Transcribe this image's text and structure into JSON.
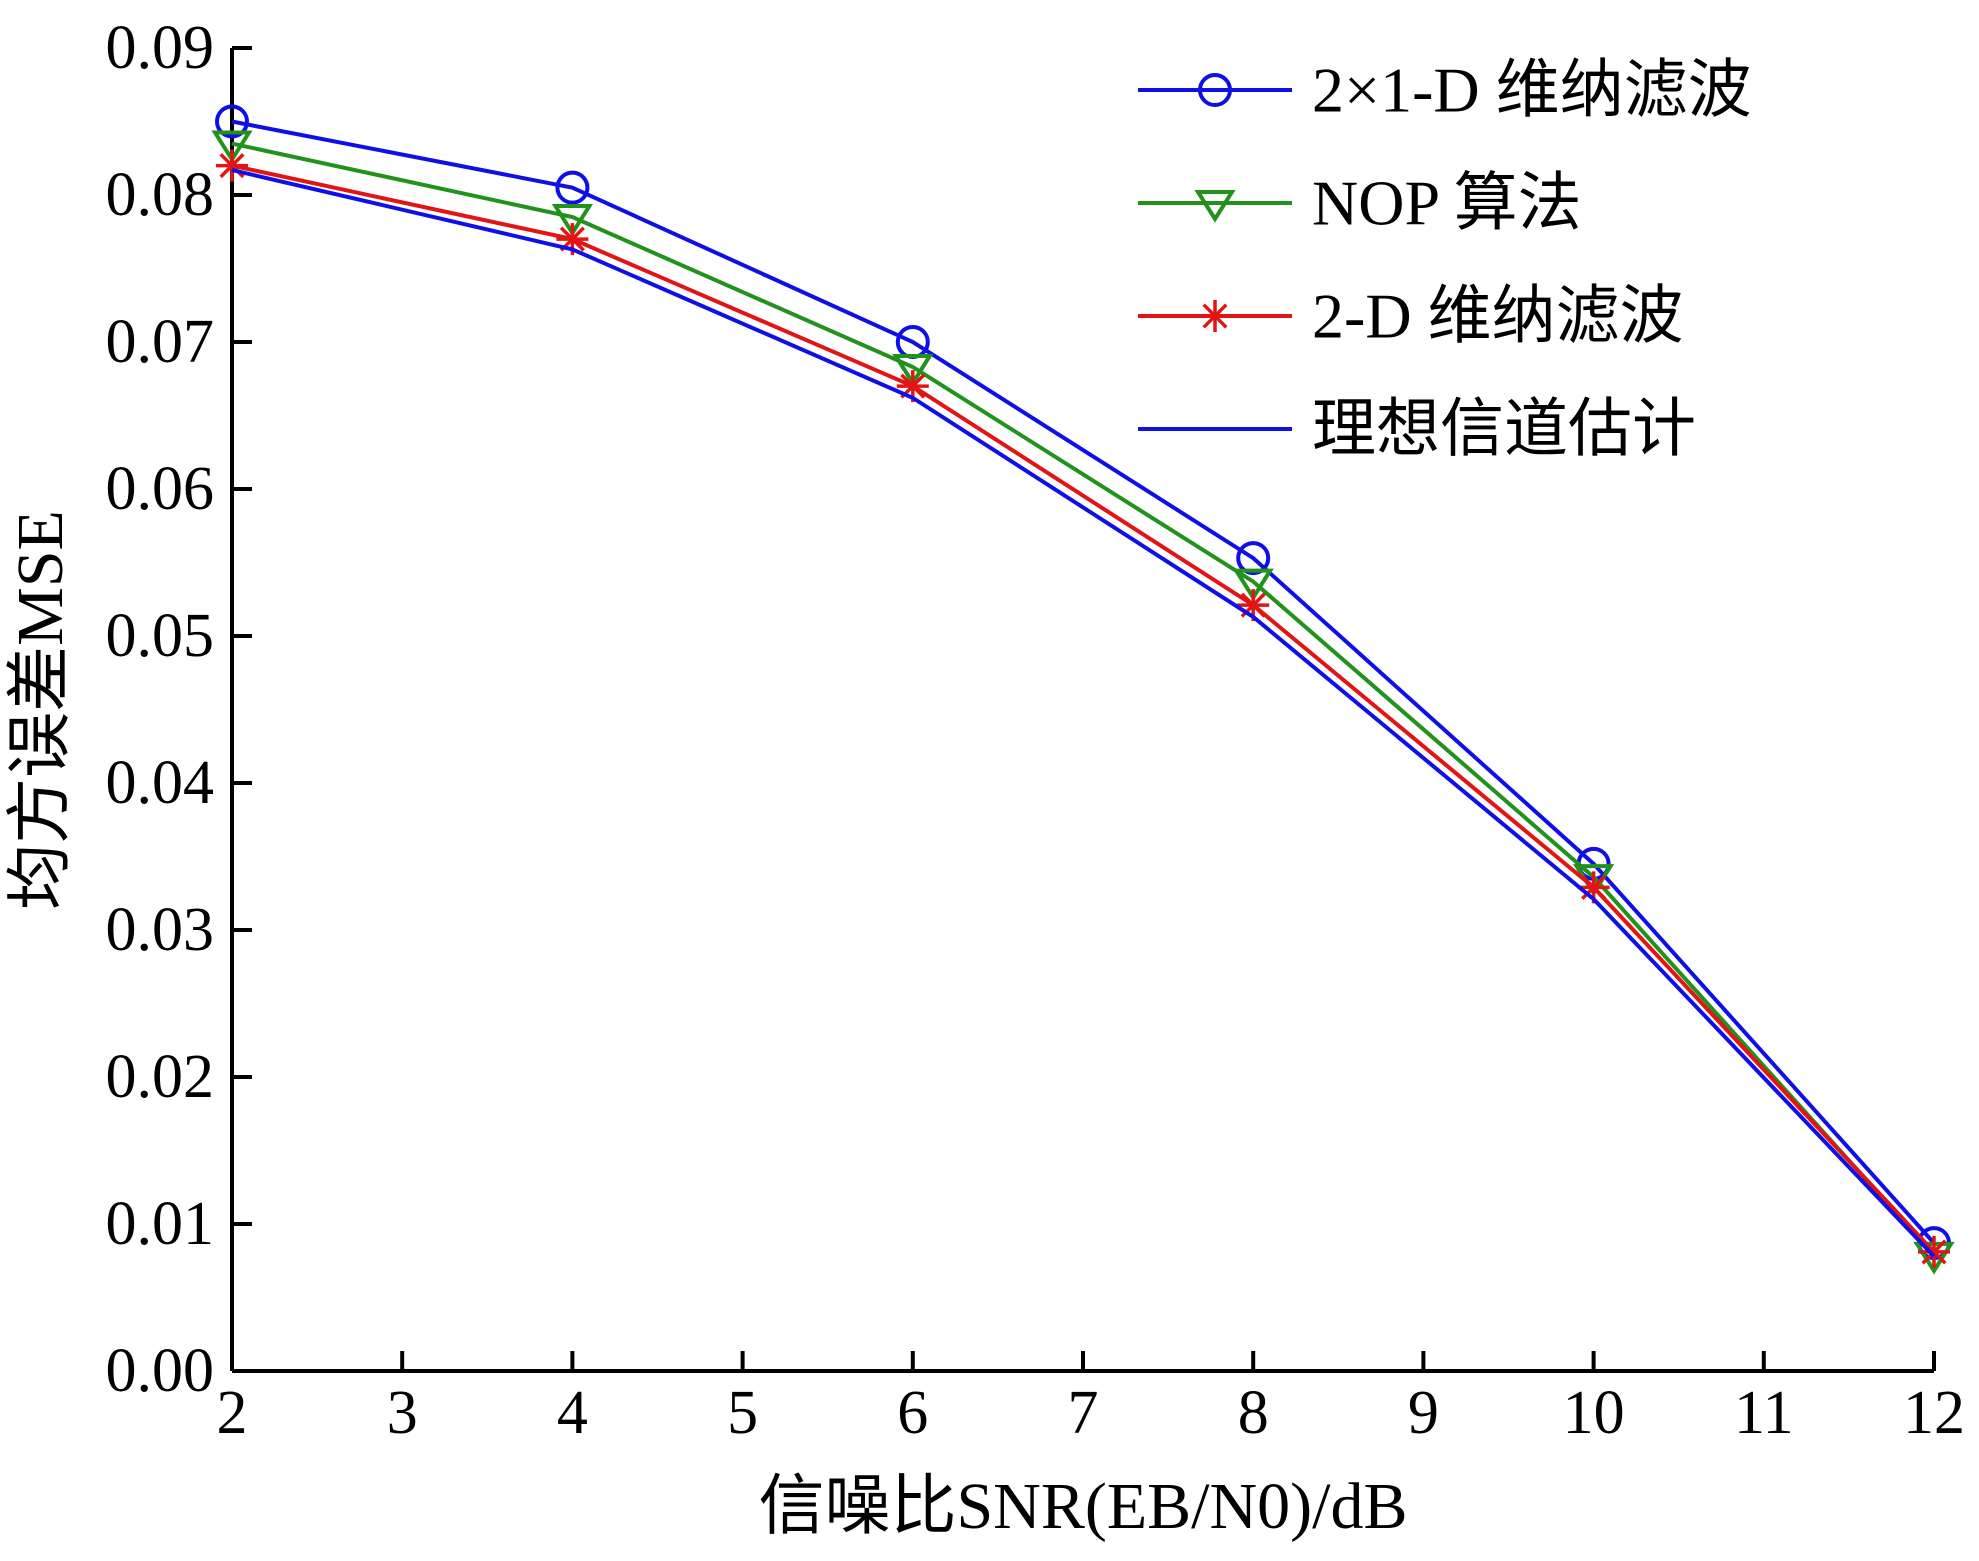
{
  "chart_data": {
    "type": "line",
    "title": "",
    "xlabel": "信噪比SNR(EB/N0)/dB",
    "ylabel": "均方误差MSE",
    "xlim": [
      2,
      12
    ],
    "ylim": [
      0,
      0.09
    ],
    "xticks": [
      2,
      3,
      4,
      5,
      6,
      7,
      8,
      9,
      10,
      11,
      12
    ],
    "yticks": [
      0.0,
      0.01,
      0.02,
      0.03,
      0.04,
      0.05,
      0.06,
      0.07,
      0.08,
      0.09
    ],
    "x": [
      2,
      4,
      6,
      8,
      10,
      12
    ],
    "series": [
      {
        "name": "2×1-D 维纳滤波",
        "color": "#0f10e8",
        "marker": "circle",
        "values": [
          0.085,
          0.0805,
          0.07,
          0.0553,
          0.0345,
          0.0087
        ]
      },
      {
        "name": "NOP 算法",
        "color": "#21921b",
        "marker": "triangle-down",
        "values": [
          0.0835,
          0.0785,
          0.0683,
          0.0537,
          0.0336,
          0.0079
        ]
      },
      {
        "name": "2-D 维纳滤波",
        "color": "#e31414",
        "marker": "asterisk",
        "values": [
          0.082,
          0.077,
          0.067,
          0.0521,
          0.0329,
          0.0081
        ]
      },
      {
        "name": "理想信道估计",
        "color": "#0f10e8",
        "marker": "none",
        "values": [
          0.0817,
          0.0763,
          0.0662,
          0.0513,
          0.0321,
          0.0078
        ]
      }
    ],
    "legend_position": "top-right",
    "grid": false,
    "axis_color": "#000000"
  }
}
